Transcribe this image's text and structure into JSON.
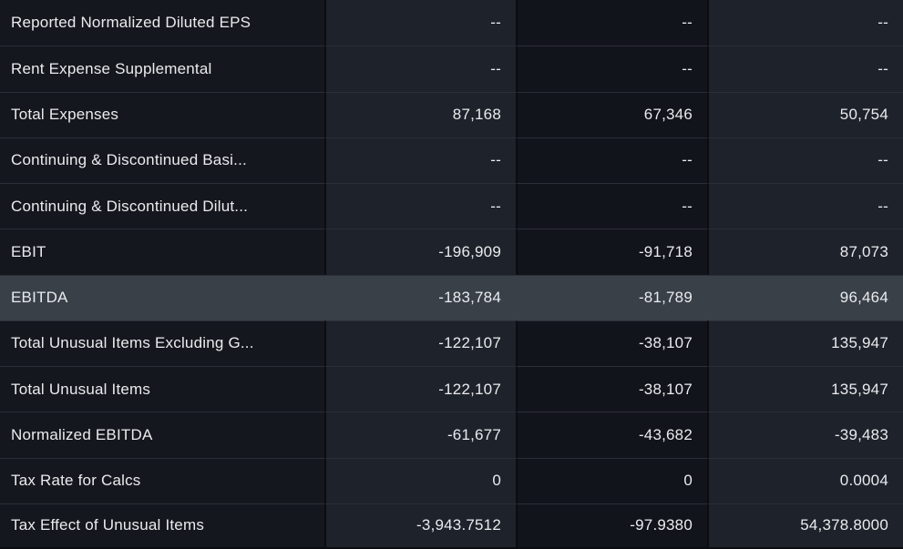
{
  "colors": {
    "gap": "#0b0d11",
    "label-col-bg": "#15171e",
    "value-col-bg": "#1e222a",
    "mid-col-bg": "#12141b",
    "highlight-row-bg": "#3a4048",
    "divider": "#2a2e37",
    "text": "#e9ebee"
  },
  "table": {
    "rows": [
      {
        "label": "Reported Normalized Diluted EPS",
        "values": [
          "--",
          "--",
          "--"
        ],
        "highlighted": false
      },
      {
        "label": "Rent Expense Supplemental",
        "values": [
          "--",
          "--",
          "--"
        ],
        "highlighted": false
      },
      {
        "label": "Total Expenses",
        "values": [
          "87,168",
          "67,346",
          "50,754"
        ],
        "highlighted": false
      },
      {
        "label": "Continuing & Discontinued Basi...",
        "values": [
          "--",
          "--",
          "--"
        ],
        "highlighted": false
      },
      {
        "label": "Continuing & Discontinued Dilut...",
        "values": [
          "--",
          "--",
          "--"
        ],
        "highlighted": false
      },
      {
        "label": "EBIT",
        "values": [
          "-196,909",
          "-91,718",
          "87,073"
        ],
        "highlighted": false
      },
      {
        "label": "EBITDA",
        "values": [
          "-183,784",
          "-81,789",
          "96,464"
        ],
        "highlighted": true
      },
      {
        "label": "Total Unusual Items Excluding G...",
        "values": [
          "-122,107",
          "-38,107",
          "135,947"
        ],
        "highlighted": false
      },
      {
        "label": "Total Unusual Items",
        "values": [
          "-122,107",
          "-38,107",
          "135,947"
        ],
        "highlighted": false
      },
      {
        "label": "Normalized EBITDA",
        "values": [
          "-61,677",
          "-43,682",
          "-39,483"
        ],
        "highlighted": false
      },
      {
        "label": "Tax Rate for Calcs",
        "values": [
          "0",
          "0",
          "0.0004"
        ],
        "highlighted": false
      },
      {
        "label": "Tax Effect of Unusual Items",
        "values": [
          "-3,943.7512",
          "-97.9380",
          "54,378.8000"
        ],
        "highlighted": false
      }
    ]
  }
}
